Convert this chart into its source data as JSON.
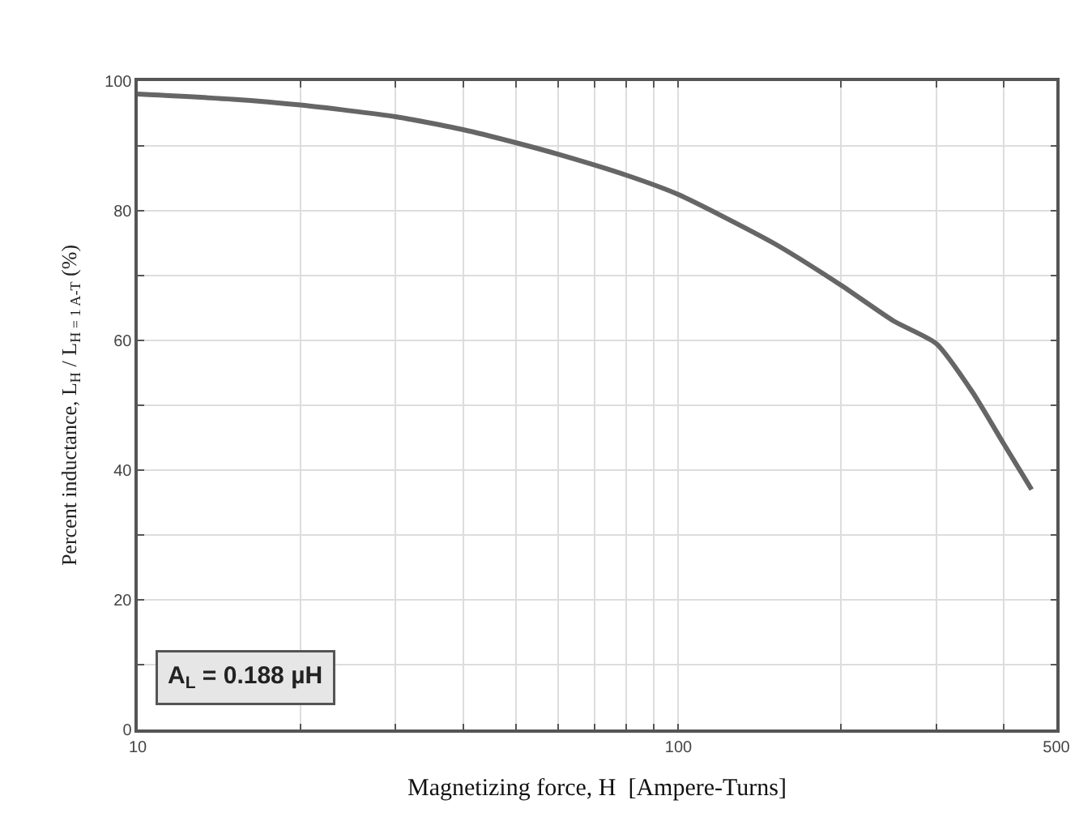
{
  "chart_data": {
    "type": "line",
    "xlabel": "Magnetizing force, H  [Ampere-Turns]",
    "ylabel": "Percent inductance, L$_{H}$ / L$_{H = 1 A-T}$ (%)",
    "x": [
      10,
      15,
      20,
      30,
      40,
      50,
      60,
      80,
      100,
      150,
      200,
      250,
      300,
      350,
      400,
      450
    ],
    "series": [
      {
        "color": "#666666",
        "values": [
          98,
          97.2,
          96.3,
          94.5,
          92.5,
          90.5,
          88.7,
          85.5,
          82.5,
          75,
          68.5,
          63,
          59.5,
          52,
          44,
          37
        ]
      }
    ],
    "log": "x",
    "xlim": [
      10,
      500
    ],
    "xticks": [
      10,
      {
        "value": 20,
        "label": null
      },
      {
        "value": 30,
        "label": null
      },
      {
        "value": 40,
        "label": null
      },
      {
        "value": 50,
        "label": null
      },
      {
        "value": 60,
        "label": null
      },
      {
        "value": 70,
        "label": null
      },
      {
        "value": 80,
        "label": null
      },
      {
        "value": 90,
        "label": null
      },
      100,
      {
        "value": 200,
        "label": null
      },
      {
        "value": 300,
        "label": null
      },
      {
        "value": 400,
        "label": null
      },
      500
    ],
    "ylim": [
      0,
      100
    ],
    "yticks": [
      0,
      {
        "value": 10,
        "label": null
      },
      20,
      {
        "value": 30,
        "label": null
      },
      40,
      {
        "value": 50,
        "label": null
      },
      60,
      {
        "value": 70,
        "label": null
      },
      80,
      {
        "value": 90,
        "label": null
      },
      100
    ],
    "grid": true,
    "marker": "none",
    "line_style": "solid",
    "annotations": [
      "A$_{L}$ = 0.188 µH"
    ]
  }
}
